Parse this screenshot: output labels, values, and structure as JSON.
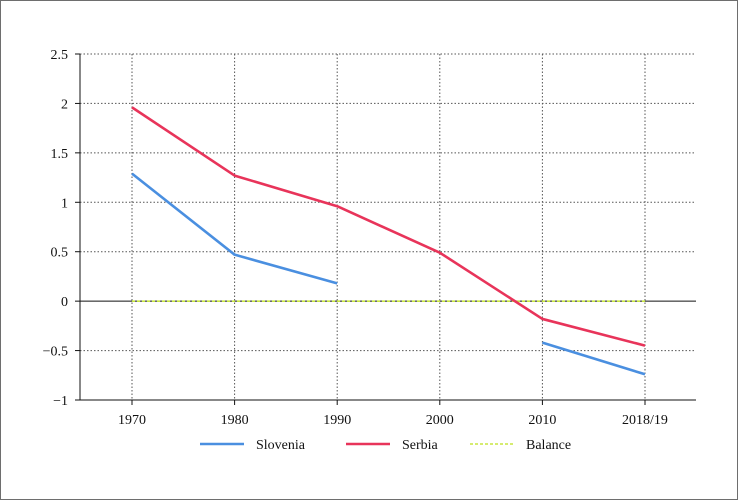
{
  "chart_data": {
    "type": "line",
    "categories": [
      "1970",
      "1980",
      "1990",
      "2000",
      "2010",
      "2018/19"
    ],
    "ylim": [
      -1,
      2.5
    ],
    "yticks": [
      2.5,
      2,
      1.5,
      1,
      0.5,
      0,
      -0.5,
      -1
    ],
    "ytick_labels": [
      "2.5",
      "2",
      "1.5",
      "1",
      "0.5",
      "0",
      "−0.5",
      "−1"
    ],
    "grid": true,
    "legend_position": "bottom",
    "series": [
      {
        "name": "Slovenia",
        "color": "#4a8fe0",
        "values": [
          1.29,
          0.47,
          0.18,
          null,
          -0.42,
          -0.74
        ]
      },
      {
        "name": "Serbia",
        "color": "#e8345a",
        "values": [
          1.96,
          1.27,
          0.96,
          0.49,
          -0.18,
          -0.45
        ]
      },
      {
        "name": "Balance",
        "color": "#c8e640",
        "dashed": true,
        "values": [
          0,
          0,
          0,
          0,
          0,
          0
        ]
      }
    ]
  }
}
